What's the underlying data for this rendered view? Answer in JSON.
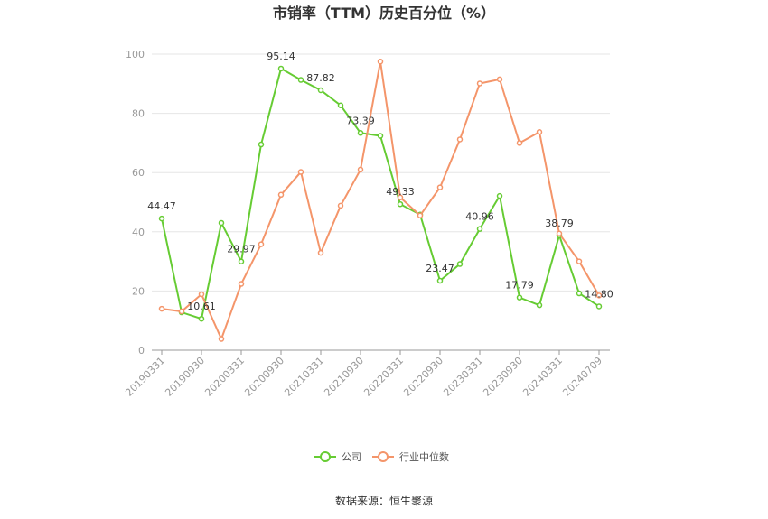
{
  "chart_data": {
    "type": "line",
    "title": "市销率（TTM）历史百分位（%）",
    "ylim": [
      0,
      100
    ],
    "yticks": [
      0,
      20,
      40,
      60,
      80,
      100
    ],
    "grid": true,
    "legend_position": "bottom",
    "x": [
      "20190331",
      "20190630",
      "20190930",
      "20191231",
      "20200331",
      "20200630",
      "20200930",
      "20201231",
      "20210331",
      "20210630",
      "20210930",
      "20211231",
      "20220331",
      "20220630",
      "20220930",
      "20221231",
      "20230331",
      "20230630",
      "20230930",
      "20231231",
      "20240331",
      "20240630",
      "20240709"
    ],
    "x_tick_labels": [
      "20190331",
      "20190930",
      "20200331",
      "20200930",
      "20210331",
      "20210930",
      "20220331",
      "20220930",
      "20230331",
      "20230930",
      "20240331",
      "20240709"
    ],
    "x_tick_indices": [
      0,
      2,
      4,
      6,
      8,
      10,
      12,
      14,
      16,
      18,
      20,
      22
    ],
    "series": [
      {
        "name": "公司",
        "color": "#66cc33",
        "values": [
          44.47,
          12.8,
          10.61,
          43.0,
          29.97,
          69.5,
          95.14,
          91.3,
          87.82,
          82.7,
          73.39,
          72.4,
          49.33,
          45.8,
          23.47,
          29.1,
          40.96,
          52.1,
          17.79,
          15.2,
          38.79,
          19.2,
          14.8
        ],
        "labels": {
          "0": "44.47",
          "2": "10.61",
          "4": "29.97",
          "6": "95.14",
          "8": "87.82",
          "10": "73.39",
          "12": "49.33",
          "14": "23.47",
          "16": "40.96",
          "18": "17.79",
          "20": "38.79",
          "22": "14.80"
        }
      },
      {
        "name": "行业中位数",
        "color": "#f4956a",
        "values": [
          14.0,
          13.1,
          18.9,
          3.8,
          22.4,
          35.8,
          52.5,
          60.2,
          32.9,
          48.8,
          61.0,
          97.5,
          51.6,
          45.5,
          55.0,
          71.2,
          90.1,
          91.5,
          70.0,
          73.7,
          39.4,
          30.0,
          18.5
        ]
      }
    ]
  },
  "source_text": "数据来源：恒生聚源"
}
